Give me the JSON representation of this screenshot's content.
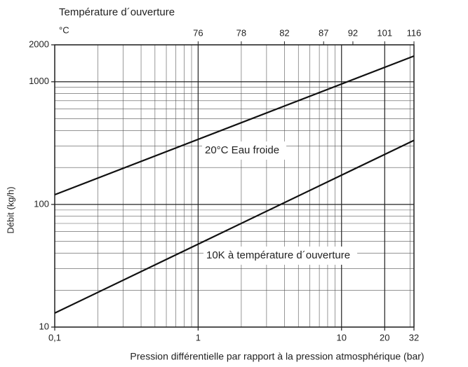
{
  "chart_data": {
    "type": "line",
    "top_axis_title": "Température d´ouverture",
    "top_axis_unit": "°C",
    "x_label": "Pression différentielle par rapport à la pression atmosphérique (bar)",
    "y_label": "Débit (kg/h)",
    "log_x": true,
    "log_y": true,
    "grid": true,
    "x": [
      0.1,
      32
    ],
    "series": [
      {
        "name": "20°C Eau froide",
        "color": "#111111",
        "values": [
          120,
          1620
        ]
      },
      {
        "name": "10K à température d´ouverture",
        "color": "#111111",
        "values": [
          13,
          333
        ]
      }
    ],
    "xlim": [
      0.1,
      32
    ],
    "ylim": [
      10,
      2000
    ],
    "xticks": [
      {
        "value": 0.1,
        "label": "0,1"
      },
      1,
      10,
      20,
      32
    ],
    "yticks": [
      10,
      100,
      1000,
      2000
    ],
    "x2ticks": [
      {
        "value": 1,
        "label": "76"
      },
      {
        "value": 2,
        "label": "78"
      },
      {
        "value": 4,
        "label": "82"
      },
      {
        "value": 7.5,
        "label": "87"
      },
      {
        "value": 12,
        "label": "92"
      },
      {
        "value": 20,
        "label": "101"
      },
      {
        "value": 32,
        "label": "116"
      }
    ]
  }
}
